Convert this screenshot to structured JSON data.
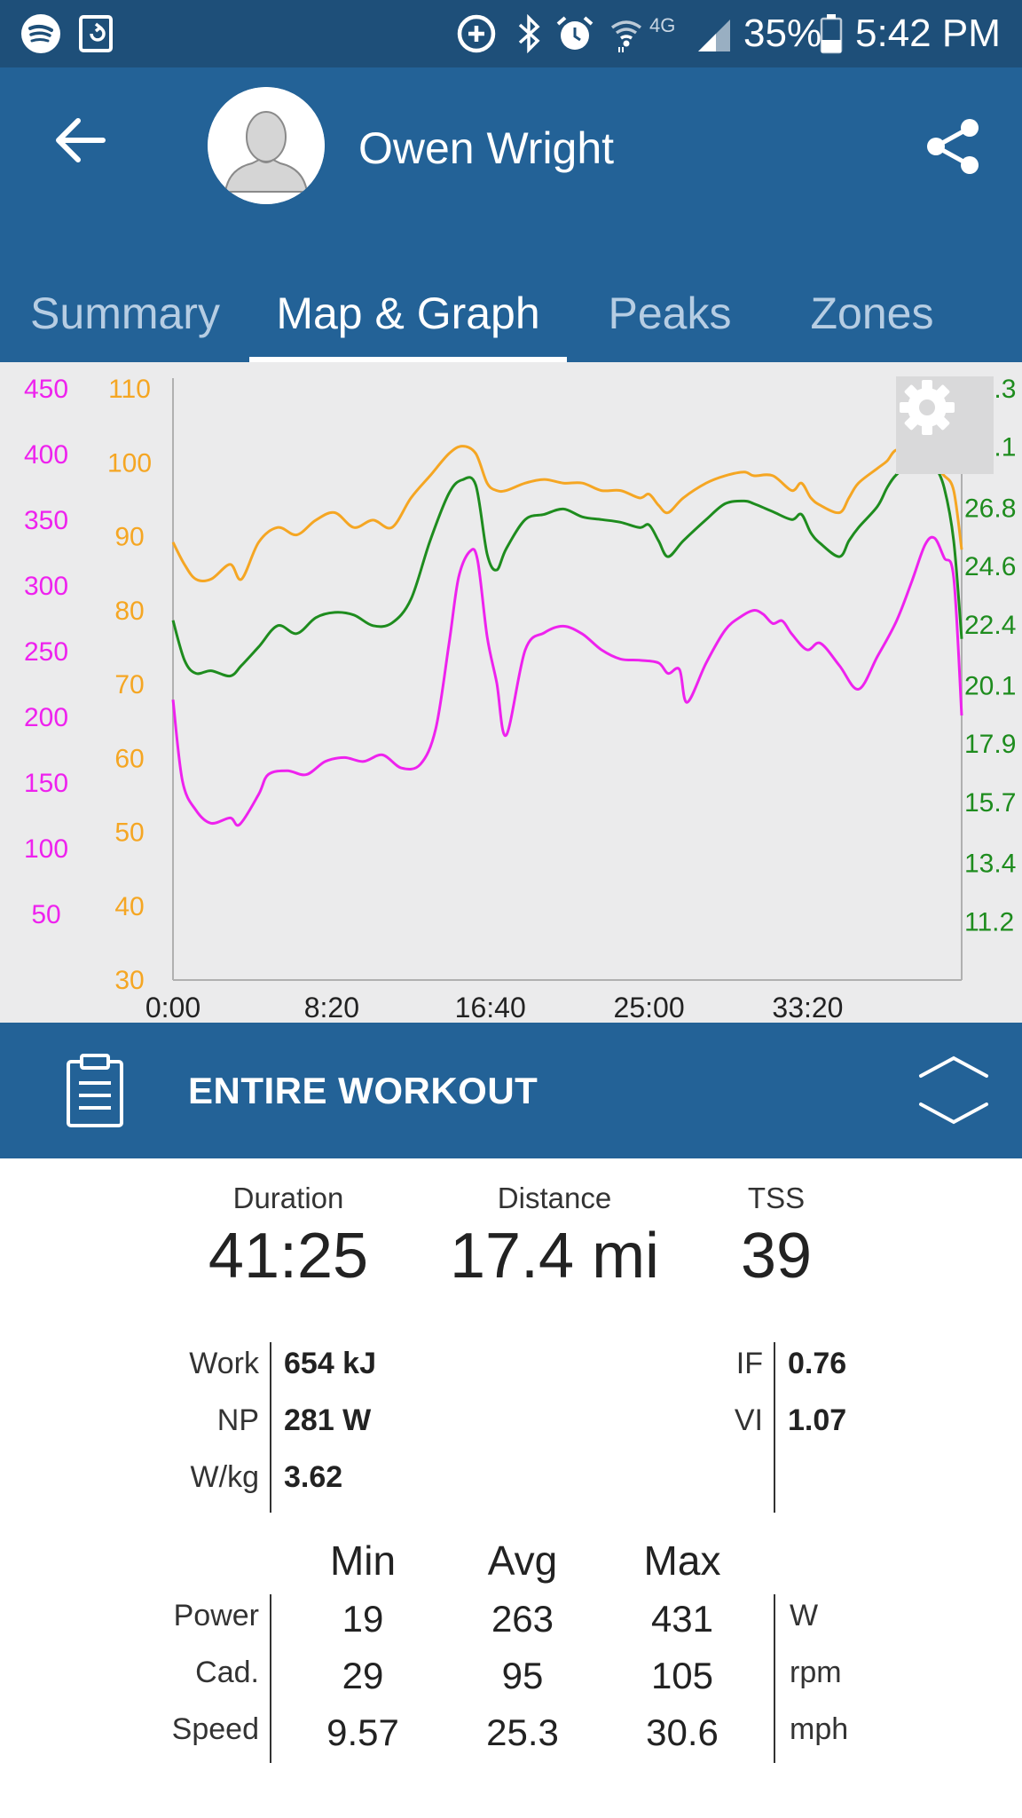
{
  "status_bar": {
    "battery": "35%",
    "time": "5:42 PM",
    "network": "4G",
    "icons": [
      "spotify-icon",
      "sync-icon",
      "data-saver-icon",
      "bluetooth-icon",
      "alarm-icon",
      "wifi-icon",
      "signal-icon",
      "battery-icon"
    ]
  },
  "header": {
    "user_name": "Owen Wright",
    "back_icon": "arrow-left-icon",
    "share_icon": "share-icon",
    "avatar_icon": "avatar-placeholder-icon"
  },
  "tabs": [
    {
      "label": "Summary",
      "active": false
    },
    {
      "label": "Map & Graph",
      "active": true
    },
    {
      "label": "Peaks",
      "active": false
    },
    {
      "label": "Zones",
      "active": false
    }
  ],
  "colors": {
    "status_bar": "#1e4f79",
    "app_bar": "#236297",
    "power": "#ee22ee",
    "cadence": "#f5a623",
    "speed": "#1e8c1e",
    "chart_bg": "#ebebec"
  },
  "chart_data": {
    "type": "line",
    "x_tick_labels": [
      "0:00",
      "8:20",
      "16:40",
      "25:00",
      "33:20"
    ],
    "xlim_minutes": [
      0,
      41.42
    ],
    "y_axes": [
      {
        "id": "power",
        "side": "left-outer",
        "color": "#ee22ee",
        "ticks": [
          50,
          100,
          150,
          200,
          250,
          300,
          350,
          400,
          450
        ],
        "range": [
          0,
          450
        ]
      },
      {
        "id": "cadence",
        "side": "left-inner",
        "color": "#f5a623",
        "ticks": [
          30,
          40,
          50,
          60,
          70,
          80,
          90,
          100,
          110
        ],
        "range": [
          30,
          110
        ]
      },
      {
        "id": "speed",
        "side": "right",
        "color": "#1e8c1e",
        "ticks": [
          "11.2",
          "13.4",
          "15.7",
          "17.9",
          "20.1",
          "22.4",
          "24.6",
          "26.8",
          "29.1",
          "31.3"
        ],
        "range": [
          9.0,
          31.3
        ]
      }
    ],
    "series": [
      {
        "axis": "power",
        "color": "#ee22ee",
        "x": [
          0,
          0.5,
          1.2,
          2,
          3,
          3.5,
          4.5,
          5,
          6,
          7,
          8,
          9,
          10,
          11,
          12,
          13,
          13.8,
          14.5,
          15,
          15.6,
          16,
          16.5,
          17,
          17.5,
          18.5,
          19.5,
          20.5,
          21.5,
          22.5,
          23.5,
          24.5,
          25.5,
          26,
          26.6,
          27,
          28,
          29,
          29.8,
          30.5,
          31,
          31.5,
          32,
          32.5,
          33.3,
          34,
          35,
          36,
          37,
          38,
          38.8,
          39.5,
          40,
          40.5,
          41,
          41.42
        ],
        "values": [
          212,
          150,
          128,
          118,
          122,
          117,
          140,
          155,
          158,
          155,
          165,
          168,
          165,
          170,
          160,
          163,
          190,
          255,
          305,
          325,
          318,
          260,
          225,
          185,
          250,
          263,
          268,
          262,
          250,
          243,
          242,
          240,
          232,
          235,
          210,
          240,
          265,
          275,
          280,
          277,
          270,
          272,
          262,
          250,
          255,
          238,
          220,
          245,
          272,
          302,
          330,
          335,
          320,
          305,
          200
        ]
      },
      {
        "axis": "cadence",
        "color": "#f5a623",
        "x": [
          0,
          0.6,
          1.2,
          2,
          3,
          3.6,
          4.5,
          5.5,
          6.5,
          7.5,
          8.5,
          9.5,
          10.5,
          11.5,
          12.5,
          13.5,
          14.5,
          15.2,
          15.9,
          16.5,
          17,
          17.5,
          18.5,
          19.5,
          20.5,
          21.5,
          22.5,
          23.5,
          24.5,
          25,
          25.5,
          26,
          26.8,
          28,
          29,
          30,
          30.5,
          31.5,
          32.5,
          33,
          33.5,
          34,
          35,
          35.5,
          36,
          37,
          37.5,
          38,
          38.8,
          39.5,
          40,
          40.5,
          41,
          41.42
        ],
        "values": [
          89,
          86,
          84,
          84,
          86,
          84,
          89,
          91,
          90,
          92,
          93,
          91,
          92,
          91,
          95,
          98,
          101,
          102,
          101,
          97,
          96,
          96,
          97,
          97.5,
          97,
          97,
          96,
          96,
          95,
          95.5,
          94,
          93,
          95,
          97,
          98,
          98.5,
          98,
          98,
          96,
          97,
          95,
          94,
          93,
          95,
          97,
          99,
          100,
          101.5,
          101,
          99,
          99,
          98,
          96,
          88
        ]
      },
      {
        "axis": "speed",
        "color": "#1e8c1e",
        "x": [
          0,
          0.6,
          1.2,
          2,
          3,
          3.6,
          4.5,
          5.5,
          6.5,
          7.5,
          8.5,
          9.5,
          10.5,
          11.5,
          12.5,
          13.5,
          14.5,
          15.2,
          15.9,
          16.5,
          17,
          17.5,
          18.5,
          19.5,
          20.5,
          21.5,
          22.5,
          23.5,
          24.5,
          25,
          25.5,
          26,
          26.8,
          28,
          29,
          30,
          30.5,
          31.5,
          32.5,
          33,
          33.5,
          34,
          35,
          35.5,
          36,
          37,
          37.5,
          38,
          38.8,
          39.5,
          40,
          40.5,
          41,
          41.42
        ],
        "values": [
          22.5,
          21.0,
          20.5,
          20.6,
          20.4,
          20.8,
          21.5,
          22.3,
          22.0,
          22.6,
          22.8,
          22.7,
          22.3,
          22.4,
          23.3,
          25.5,
          27.3,
          27.8,
          27.6,
          25.0,
          24.4,
          25.2,
          26.3,
          26.5,
          26.7,
          26.4,
          26.3,
          26.2,
          26.0,
          26.1,
          25.5,
          24.9,
          25.5,
          26.3,
          26.9,
          27.0,
          26.9,
          26.6,
          26.3,
          26.5,
          25.8,
          25.4,
          24.9,
          25.5,
          26.0,
          26.8,
          27.5,
          28.0,
          28.4,
          28.5,
          28.3,
          27.5,
          25.5,
          21.8
        ]
      }
    ]
  },
  "section": {
    "title": "ENTIRE WORKOUT",
    "icon": "clipboard-icon",
    "toggle_icon": "expand-collapse-icon"
  },
  "summary": {
    "duration": {
      "label": "Duration",
      "value": "41:25"
    },
    "distance": {
      "label": "Distance",
      "value": "17.4 mi"
    },
    "tss": {
      "label": "TSS",
      "value": "39"
    }
  },
  "details_left": [
    {
      "label": "Work",
      "value": "654 kJ"
    },
    {
      "label": "NP",
      "value": "281 W"
    },
    {
      "label": "W/kg",
      "value": "3.62"
    }
  ],
  "details_right": [
    {
      "label": "IF",
      "value": "0.76"
    },
    {
      "label": "VI",
      "value": "1.07"
    }
  ],
  "min_avg_max": {
    "headers": [
      "Min",
      "Avg",
      "Max"
    ],
    "rows": [
      {
        "label": "Power",
        "min": "19",
        "avg": "263",
        "max": "431",
        "unit": "W"
      },
      {
        "label": "Cad.",
        "min": "29",
        "avg": "95",
        "max": "105",
        "unit": "rpm"
      },
      {
        "label": "Speed",
        "min": "9.57",
        "avg": "25.3",
        "max": "30.6",
        "unit": "mph"
      }
    ]
  }
}
